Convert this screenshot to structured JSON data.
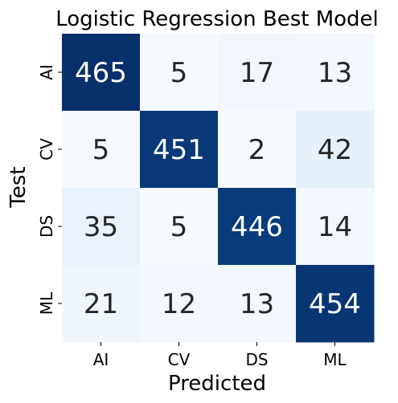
{
  "chart_data": {
    "type": "heatmap",
    "title": "Logistic Regression Best Model",
    "xlabel": "Predicted",
    "ylabel": "Test",
    "x_categories": [
      "AI",
      "CV",
      "DS",
      "ML"
    ],
    "y_categories": [
      "AI",
      "CV",
      "DS",
      "ML"
    ],
    "values": [
      [
        465,
        5,
        17,
        13
      ],
      [
        5,
        451,
        2,
        42
      ],
      [
        35,
        5,
        446,
        14
      ],
      [
        21,
        12,
        13,
        454
      ]
    ],
    "colormap": "Blues",
    "low_color": "#f7fbff",
    "high_color": "#08306b",
    "colorbar": false,
    "grid": false
  }
}
